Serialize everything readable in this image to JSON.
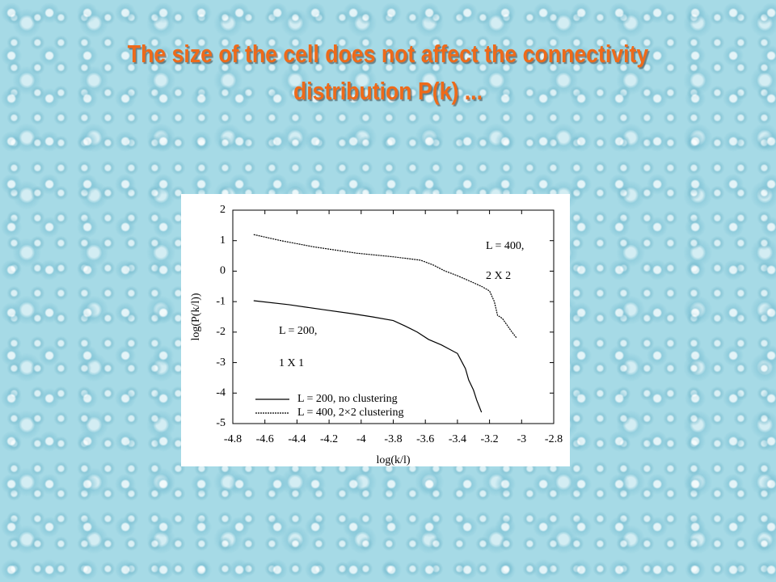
{
  "title": "The size of the cell does not affect the connectivity distribution P(k) ...",
  "chart_data": {
    "type": "line",
    "xlabel": "log(k/l)",
    "ylabel": "log(P(k/l))",
    "xlim": [
      -4.8,
      -2.8
    ],
    "ylim": [
      -5,
      2
    ],
    "xticks": [
      -4.8,
      -4.6,
      -4.4,
      -4.2,
      -4,
      -3.8,
      -3.6,
      -3.4,
      -3.2,
      -3,
      -2.8
    ],
    "yticks": [
      2,
      1,
      0,
      -1,
      -2,
      -3,
      -4,
      -5
    ],
    "legend": "lower left",
    "series": [
      {
        "name": "L = 200, no clustering",
        "color": "#000000",
        "dash": "solid",
        "x": [
          -4.67,
          -4.45,
          -4.24,
          -4.05,
          -3.93,
          -3.8,
          -3.73,
          -3.65,
          -3.58,
          -3.5,
          -3.45,
          -3.4,
          -3.38,
          -3.35,
          -3.33,
          -3.3,
          -3.28,
          -3.25
        ],
        "values": [
          -0.97,
          -1.1,
          -1.26,
          -1.4,
          -1.5,
          -1.62,
          -1.79,
          -2.0,
          -2.24,
          -2.42,
          -2.56,
          -2.7,
          -2.9,
          -3.2,
          -3.57,
          -3.9,
          -4.23,
          -4.63
        ]
      },
      {
        "name": "L = 400, 2×2 clustering",
        "color": "#000000",
        "dash": "dotted",
        "x": [
          -4.67,
          -4.5,
          -4.3,
          -4.03,
          -3.8,
          -3.63,
          -3.55,
          -3.48,
          -3.4,
          -3.33,
          -3.25,
          -3.2,
          -3.17,
          -3.15,
          -3.12,
          -3.1,
          -3.06,
          -3.03
        ],
        "values": [
          1.2,
          1.0,
          0.8,
          0.59,
          0.47,
          0.36,
          0.2,
          0.01,
          -0.15,
          -0.31,
          -0.5,
          -0.65,
          -1.0,
          -1.45,
          -1.55,
          -1.7,
          -2.0,
          -2.2
        ]
      }
    ],
    "annotations": [
      "L = 400,",
      "2 X 2",
      "L = 200,",
      "1 X 1"
    ]
  }
}
